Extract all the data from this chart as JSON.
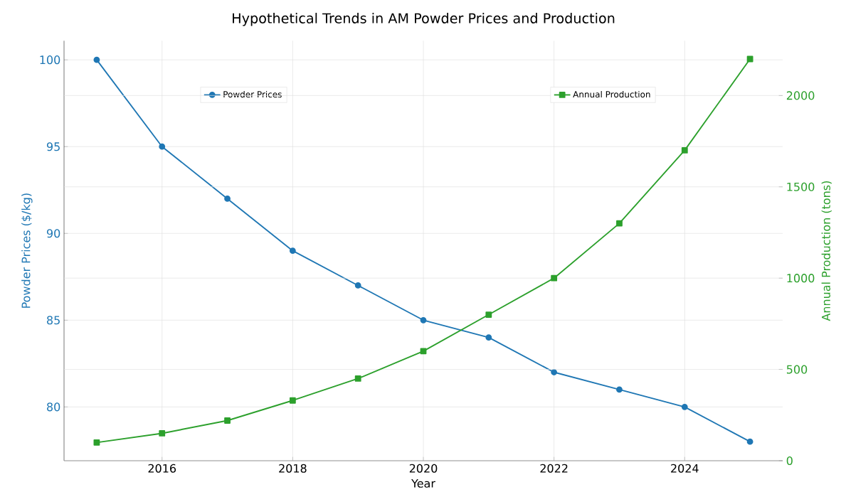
{
  "chart_data": {
    "type": "line",
    "title": "Hypothetical Trends in AM Powder Prices and Production",
    "xlabel": "Year",
    "ylabel": "Powder Prices ($/kg)",
    "y2label": "Annual Production (tons)",
    "x": [
      2015,
      2016,
      2017,
      2018,
      2019,
      2020,
      2021,
      2022,
      2023,
      2024,
      2025
    ],
    "series": [
      {
        "name": "Powder Prices",
        "color": "#1f77b4",
        "marker": "circle",
        "values": [
          100,
          95,
          92,
          89,
          87,
          85,
          84,
          82,
          81,
          80,
          78
        ]
      },
      {
        "name": "Annual Production",
        "color": "#2ca02c",
        "marker": "square",
        "axis": "y2",
        "values": [
          100,
          150,
          220,
          330,
          450,
          600,
          800,
          1000,
          1300,
          1700,
          2200
        ]
      }
    ],
    "xlim": [
      2014.5,
      2025.5
    ],
    "xticks": [
      2016,
      2018,
      2020,
      2022,
      2024
    ],
    "ylim": [
      76.9,
      101.1
    ],
    "yticks": [
      80,
      85,
      90,
      95,
      100
    ],
    "y2lim": [
      0,
      2300
    ],
    "y2ticks": [
      0,
      500,
      1000,
      1500,
      2000
    ],
    "grid": true,
    "legend": "top",
    "line_style": "solid"
  }
}
